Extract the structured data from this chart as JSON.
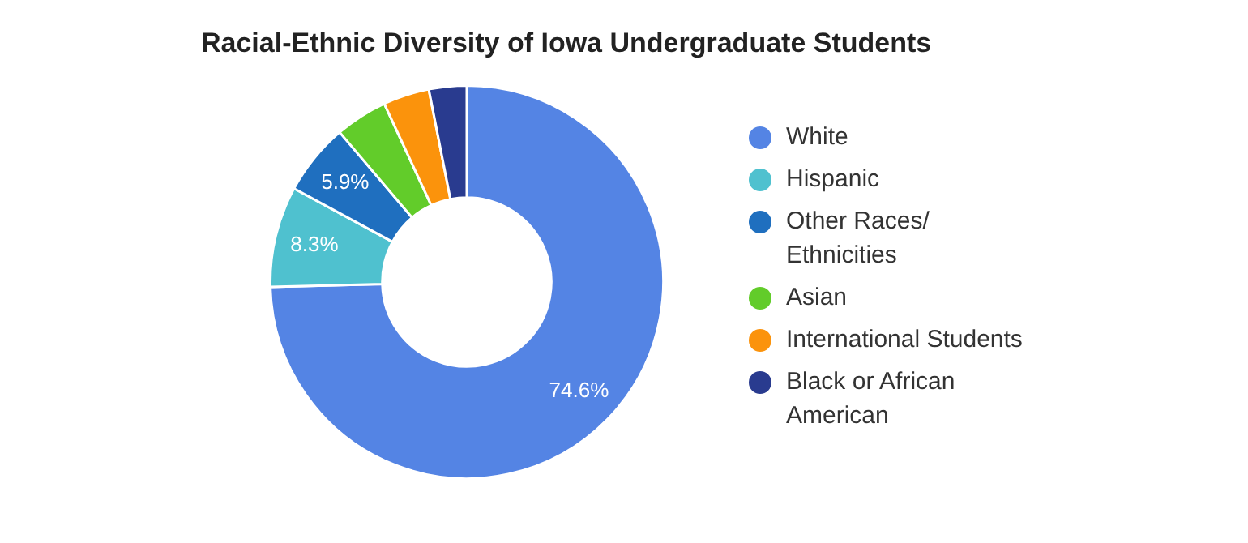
{
  "chart_data": {
    "type": "donut",
    "title": "Racial-Ethnic Diversity of Iowa Undergraduate Students",
    "categories": [
      "White",
      "Hispanic",
      "Other Races/ Ethnicities",
      "Asian",
      "International Students",
      "Black or African American"
    ],
    "values": [
      74.6,
      8.3,
      5.9,
      4.3,
      3.8,
      3.1
    ],
    "colors": [
      "#5484e4",
      "#4fc1cf",
      "#1f6fbf",
      "#62cc2a",
      "#fb930c",
      "#293b8f"
    ],
    "value_labels": [
      "74.6%",
      "8.3%",
      "5.9%",
      null,
      null,
      null
    ],
    "legend": "right"
  }
}
